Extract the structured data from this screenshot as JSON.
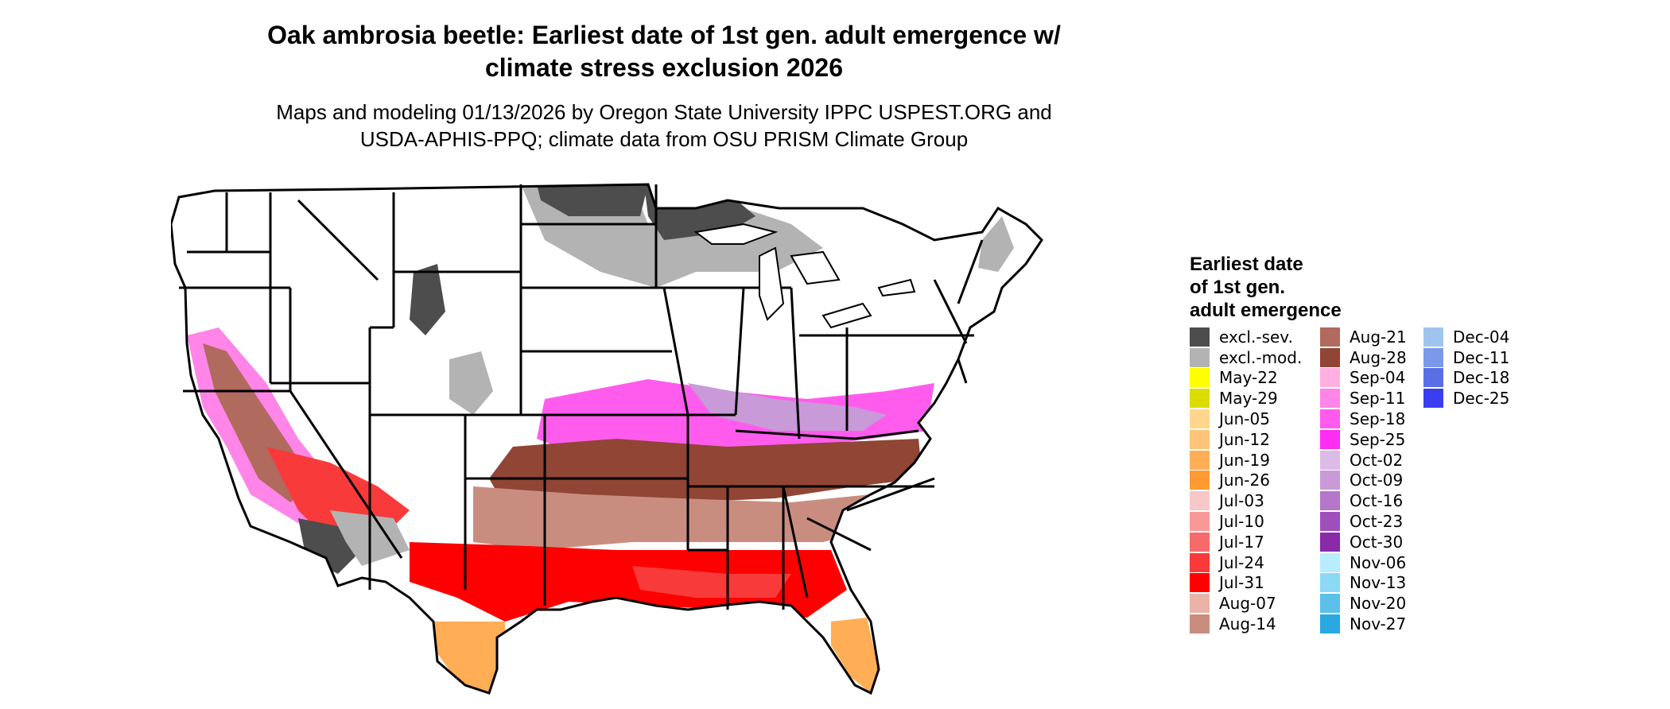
{
  "title_line1": "Oak ambrosia beetle: Earliest date of 1st gen. adult emergence w/",
  "title_line2": "climate stress exclusion 2026",
  "subtitle_line1": "Maps and modeling 01/13/2026 by Oregon State University IPPC USPEST.ORG and",
  "subtitle_line2": "USDA-APHIS-PPQ; climate data from OSU PRISM Climate Group",
  "legend": {
    "title_line1": "Earliest date",
    "title_line2": "of 1st gen.",
    "title_line3": "adult emergence",
    "columns": [
      [
        {
          "label": "excl.-sev.",
          "color": "#4d4d4d"
        },
        {
          "label": "excl.-mod.",
          "color": "#b3b3b3"
        },
        {
          "label": "May-22",
          "color": "#ffff00"
        },
        {
          "label": "May-29",
          "color": "#dcdc00"
        },
        {
          "label": "Jun-05",
          "color": "#ffd68a"
        },
        {
          "label": "Jun-12",
          "color": "#ffc47a"
        },
        {
          "label": "Jun-19",
          "color": "#ffae55"
        },
        {
          "label": "Jun-26",
          "color": "#ff9a33"
        },
        {
          "label": "Jul-03",
          "color": "#f8c8c8"
        },
        {
          "label": "Jul-10",
          "color": "#f89999"
        },
        {
          "label": "Jul-17",
          "color": "#f76a6a"
        },
        {
          "label": "Jul-24",
          "color": "#f83a3a"
        },
        {
          "label": "Jul-31",
          "color": "#ff0000"
        },
        {
          "label": "Aug-07",
          "color": "#e8b4a8"
        },
        {
          "label": "Aug-14",
          "color": "#c98d80"
        }
      ],
      [
        {
          "label": "Aug-21",
          "color": "#b06a5e"
        },
        {
          "label": "Aug-28",
          "color": "#904535"
        },
        {
          "label": "Sep-04",
          "color": "#ffb0e0"
        },
        {
          "label": "Sep-11",
          "color": "#ff85e8"
        },
        {
          "label": "Sep-18",
          "color": "#ff5ced"
        },
        {
          "label": "Sep-25",
          "color": "#ff2cf2"
        },
        {
          "label": "Oct-02",
          "color": "#dcbce6"
        },
        {
          "label": "Oct-09",
          "color": "#c89ad8"
        },
        {
          "label": "Oct-16",
          "color": "#b477cb"
        },
        {
          "label": "Oct-23",
          "color": "#9f4fba"
        },
        {
          "label": "Oct-30",
          "color": "#8a2aa8"
        },
        {
          "label": "Nov-06",
          "color": "#b8ecff"
        },
        {
          "label": "Nov-13",
          "color": "#8cd8f5"
        },
        {
          "label": "Nov-20",
          "color": "#5cc0ea"
        },
        {
          "label": "Nov-27",
          "color": "#2aa8e0"
        }
      ],
      [
        {
          "label": "Dec-04",
          "color": "#a0c4ee"
        },
        {
          "label": "Dec-11",
          "color": "#7c98ea"
        },
        {
          "label": "Dec-18",
          "color": "#5a6ee6"
        },
        {
          "label": "Dec-25",
          "color": "#3a3ef0"
        }
      ]
    ]
  }
}
